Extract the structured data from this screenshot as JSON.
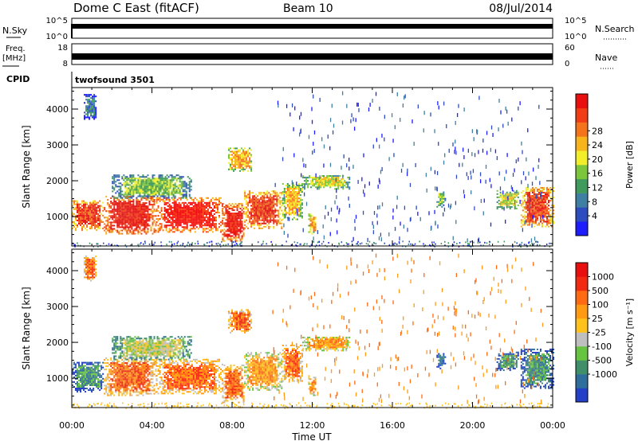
{
  "header": {
    "station": "Dome C East (fitACF)",
    "beam": "Beam 10",
    "date": "08/Jul/2014"
  },
  "strips": {
    "nsky_label": "N.Sky",
    "nsky_ticks": [
      "10^5",
      "10^0"
    ],
    "nsearch_label": "N.Search",
    "nsearch_ticks": [
      "10^5",
      "10^0"
    ],
    "freq_label": "Freq.",
    "freq_unit": "[MHz]",
    "freq_ticks": [
      "18",
      "8"
    ],
    "nave_label": "Nave",
    "nave_ticks": [
      "60",
      "0"
    ],
    "cpid_label": "CPID",
    "cpid_value": "twofsound 3501"
  },
  "chart_data": [
    {
      "type": "heatmap",
      "panel": "power",
      "ylabel": "Slant Range [km]",
      "xlabel": "",
      "x_range_hours": [
        0,
        24
      ],
      "ylim": [
        180,
        4600
      ],
      "yticks": [
        1000,
        2000,
        3000,
        4000
      ],
      "xtick_labels": [
        "00:00",
        "04:00",
        "08:00",
        "12:00",
        "16:00",
        "20:00",
        "00:00"
      ],
      "colorbar": {
        "label": "Power [dB]",
        "ticks": [
          "4",
          "8",
          "12",
          "16",
          "20",
          "24",
          "28"
        ],
        "colors": [
          "#1d1dff",
          "#2c4cc0",
          "#3e7fa3",
          "#3f9a5b",
          "#7bc63b",
          "#f2ee2a",
          "#f7b51b",
          "#f5741b",
          "#f23c13",
          "#ea0f0f"
        ]
      },
      "echo_regions": [
        {
          "t0": 0.0,
          "t1": 1.6,
          "r0": 600,
          "r1": 1450,
          "level": 8
        },
        {
          "t0": 1.6,
          "t1": 4.2,
          "r0": 500,
          "r1": 1550,
          "level": 9
        },
        {
          "t0": 4.2,
          "t1": 7.5,
          "r0": 550,
          "r1": 1500,
          "level": 9
        },
        {
          "t0": 7.5,
          "t1": 8.6,
          "r0": 300,
          "r1": 1350,
          "level": 9
        },
        {
          "t0": 8.6,
          "t1": 10.5,
          "r0": 650,
          "r1": 1700,
          "level": 8
        },
        {
          "t0": 10.5,
          "t1": 11.5,
          "r0": 900,
          "r1": 1900,
          "level": 6
        },
        {
          "t0": 11.5,
          "t1": 13.9,
          "r0": 1750,
          "r1": 2150,
          "level": 5
        },
        {
          "t0": 2.0,
          "t1": 6.0,
          "r0": 1500,
          "r1": 2150,
          "level": 4
        },
        {
          "t0": 7.8,
          "t1": 9.0,
          "r0": 2250,
          "r1": 2900,
          "level": 6
        },
        {
          "t0": 11.8,
          "t1": 12.2,
          "r0": 500,
          "r1": 1050,
          "level": 6
        },
        {
          "t0": 22.4,
          "t1": 24.0,
          "r0": 700,
          "r1": 1800,
          "level": 8
        },
        {
          "t0": 21.2,
          "t1": 22.3,
          "r0": 1200,
          "r1": 1700,
          "level": 5
        },
        {
          "t0": 18.2,
          "t1": 18.6,
          "r0": 1250,
          "r1": 1700,
          "level": 4
        },
        {
          "t0": 0.6,
          "t1": 1.2,
          "r0": 3700,
          "r1": 4400,
          "level": 2
        }
      ]
    },
    {
      "type": "heatmap",
      "panel": "velocity",
      "ylabel": "Slant Range [km]",
      "xlabel": "Time UT",
      "x_range_hours": [
        0,
        24
      ],
      "ylim": [
        180,
        4600
      ],
      "yticks": [
        1000,
        2000,
        3000,
        4000
      ],
      "xtick_labels": [
        "00:00",
        "04:00",
        "08:00",
        "12:00",
        "16:00",
        "20:00",
        "00:00"
      ],
      "colorbar": {
        "label": "Velocity [m s⁻¹]",
        "ticks": [
          "1000",
          "500",
          "100",
          "25",
          "-25",
          "-100",
          "-500",
          "-1000"
        ],
        "colors": [
          "#2440c8",
          "#2f6e9c",
          "#3e8f6a",
          "#66c440",
          "#bfbfbf",
          "#ffc21a",
          "#ff9a12",
          "#ff6a12",
          "#f22a12",
          "#ea0f0f"
        ]
      },
      "echo_regions": [
        {
          "t0": 0.0,
          "t1": 1.6,
          "r0": 600,
          "r1": 1450,
          "level": 2
        },
        {
          "t0": 1.6,
          "t1": 4.2,
          "r0": 500,
          "r1": 1550,
          "level": 7
        },
        {
          "t0": 4.2,
          "t1": 7.5,
          "r0": 550,
          "r1": 1500,
          "level": 7
        },
        {
          "t0": 7.5,
          "t1": 8.6,
          "r0": 300,
          "r1": 1350,
          "level": 7
        },
        {
          "t0": 8.6,
          "t1": 10.5,
          "r0": 650,
          "r1": 1700,
          "level": 6
        },
        {
          "t0": 10.5,
          "t1": 11.5,
          "r0": 900,
          "r1": 1900,
          "level": 7
        },
        {
          "t0": 11.5,
          "t1": 13.9,
          "r0": 1750,
          "r1": 2150,
          "level": 6
        },
        {
          "t0": 2.0,
          "t1": 6.0,
          "r0": 1500,
          "r1": 2150,
          "level": 4
        },
        {
          "t0": 7.8,
          "t1": 9.0,
          "r0": 2250,
          "r1": 2900,
          "level": 7
        },
        {
          "t0": 11.8,
          "t1": 12.2,
          "r0": 500,
          "r1": 1050,
          "level": 6
        },
        {
          "t0": 22.4,
          "t1": 24.0,
          "r0": 700,
          "r1": 1800,
          "level": 2
        },
        {
          "t0": 21.2,
          "t1": 22.3,
          "r0": 1200,
          "r1": 1700,
          "level": 2
        },
        {
          "t0": 18.2,
          "t1": 18.6,
          "r0": 1250,
          "r1": 1700,
          "level": 1
        },
        {
          "t0": 0.6,
          "t1": 1.2,
          "r0": 3700,
          "r1": 4400,
          "level": 7
        }
      ]
    }
  ]
}
